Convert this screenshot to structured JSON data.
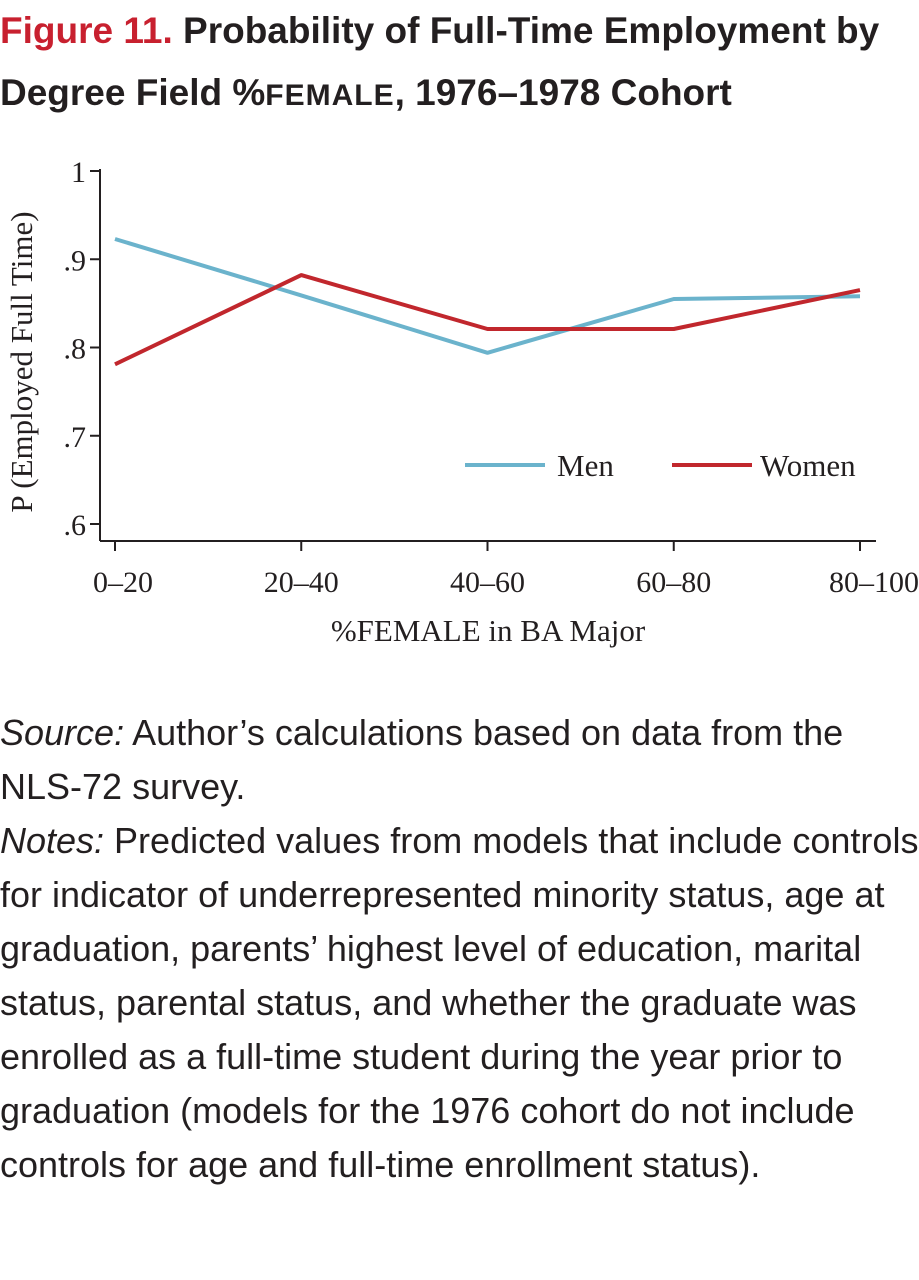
{
  "figure": {
    "label": "Figure 11.",
    "title_part1": "Probability of Full-Time Employment by",
    "title_part2": "Degree Field %",
    "title_smallcaps": "FEMALE",
    "title_part3": ", 1976–1978 Cohort"
  },
  "chart_data": {
    "type": "line",
    "categories": [
      "0–20",
      "20–40",
      "40–60",
      "60–80",
      "80–100"
    ],
    "series": [
      {
        "name": "Men",
        "color": "#6bb3cc",
        "values": [
          0.923,
          0.859,
          0.794,
          0.855,
          0.858
        ]
      },
      {
        "name": "Women",
        "color": "#c1272d",
        "values": [
          0.781,
          0.882,
          0.821,
          0.821,
          0.865
        ]
      }
    ],
    "yticks": [
      {
        "value": 1.0,
        "label": "1"
      },
      {
        "value": 0.9,
        "label": ".9"
      },
      {
        "value": 0.8,
        "label": ".8"
      },
      {
        "value": 0.7,
        "label": ".7"
      },
      {
        "value": 0.6,
        "label": ".6"
      }
    ],
    "ylim": [
      0.6,
      1.0
    ],
    "xlabel": "%FEMALE in BA Major",
    "ylabel": "P (Employed Full Time)",
    "legend_placement": "bottom-right",
    "grid": false
  },
  "source": {
    "label": "Source:",
    "text": " Author’s calculations based on data from the NLS-72 survey."
  },
  "notes": {
    "label": "Notes:",
    "text": " Predicted values from models that include controls for indicator of underrepresented minority status, age at graduation, parents’ highest level of education, marital status, parental status, and whether the graduate was enrolled as a full-time student during the year prior to graduation (models for the 1976 cohort do not include controls for age and full-time enrollment status)."
  }
}
